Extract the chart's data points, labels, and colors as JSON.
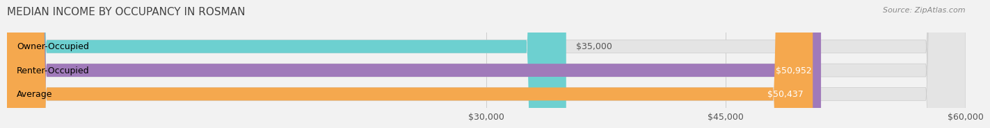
{
  "title": "MEDIAN INCOME BY OCCUPANCY IN ROSMAN",
  "source": "Source: ZipAtlas.com",
  "categories": [
    "Owner-Occupied",
    "Renter-Occupied",
    "Average"
  ],
  "values": [
    35000,
    50952,
    50437
  ],
  "bar_colors": [
    "#6dd0d0",
    "#a07aba",
    "#f5a84e"
  ],
  "label_colors": [
    "#333333",
    "#ffffff",
    "#ffffff"
  ],
  "value_labels": [
    "$35,000",
    "$50,952",
    "$50,437"
  ],
  "xlim": [
    0,
    60000
  ],
  "xticks": [
    30000,
    45000,
    60000
  ],
  "xtick_labels": [
    "$30,000",
    "$45,000",
    "$60,000"
  ],
  "bar_height": 0.55,
  "background_color": "#f2f2f2",
  "bar_background_color": "#e4e4e4",
  "title_fontsize": 11,
  "source_fontsize": 8,
  "tick_fontsize": 9,
  "label_fontsize": 9,
  "value_fontsize": 9
}
